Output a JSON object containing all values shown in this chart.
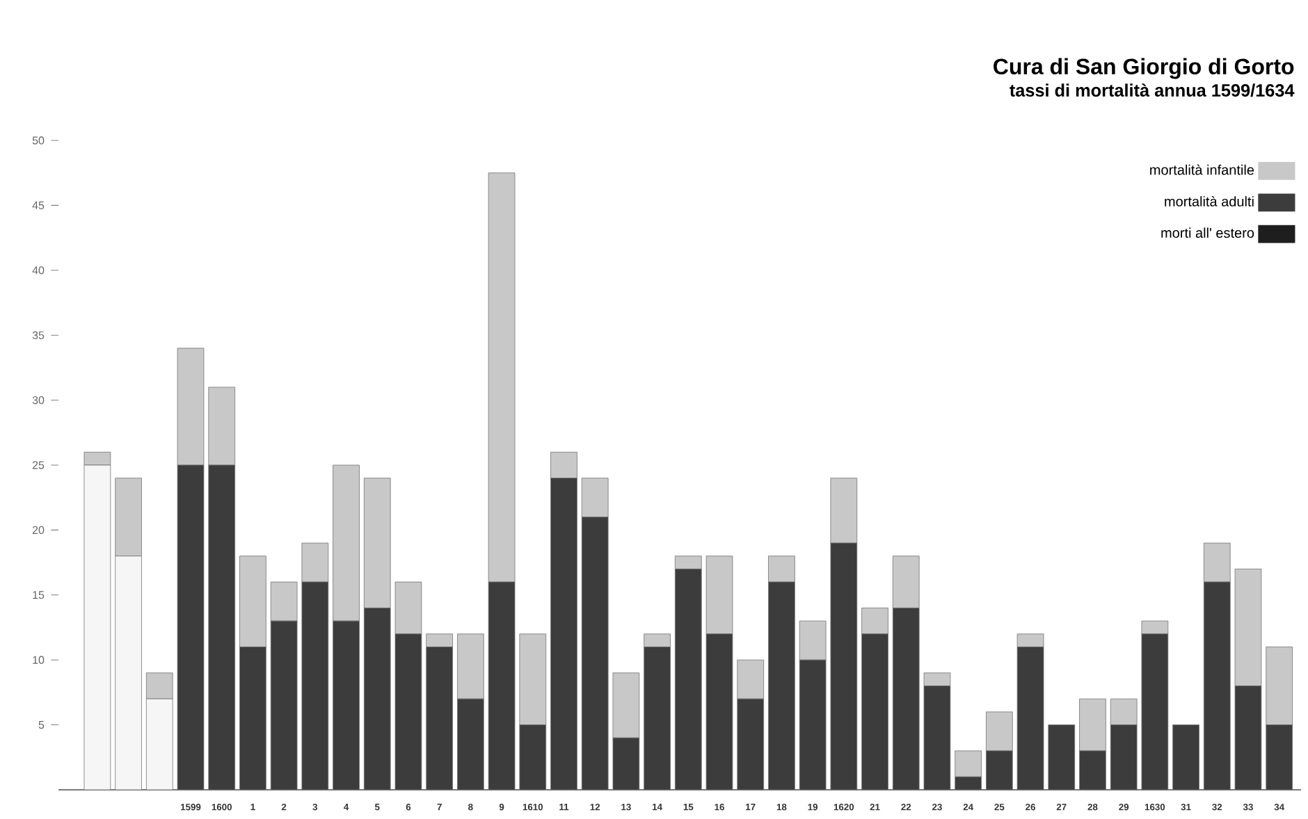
{
  "chart_data": {
    "type": "bar",
    "stacked": true,
    "title": "Cura di San Giorgio di Gorto",
    "subtitle": "tassi di mortalità annua 1599/1634",
    "categories": [
      null,
      null,
      null,
      "1599",
      "1600",
      "1",
      "2",
      "3",
      "4",
      "5",
      "6",
      "7",
      "8",
      "9",
      "1610",
      "11",
      "12",
      "13",
      "14",
      "15",
      "16",
      "17",
      "18",
      "19",
      "1620",
      "21",
      "22",
      "23",
      "24",
      "25",
      "26",
      "27",
      "28",
      "29",
      "1630",
      "31",
      "32",
      "33",
      "34"
    ],
    "series": [
      {
        "name": "morti all' estero",
        "color": "#1e1e1e",
        "values": [
          null,
          null,
          null,
          null,
          null,
          null,
          null,
          null,
          null,
          null,
          null,
          null,
          null,
          null,
          null,
          null,
          null,
          null,
          null,
          null,
          null,
          null,
          null,
          null,
          null,
          null,
          null,
          null,
          null,
          null,
          null,
          null,
          null,
          null,
          null,
          null,
          null,
          null,
          null
        ]
      },
      {
        "name": "mortalità adulti",
        "color": "#3c3c3c",
        "colors": [
          "#f6f6f6",
          "#f6f6f6",
          "#f6f6f6",
          "#3c3c3c",
          "#3c3c3c",
          "#3c3c3c",
          "#3c3c3c",
          "#3c3c3c",
          "#3c3c3c",
          "#3c3c3c",
          "#3c3c3c",
          "#3c3c3c",
          "#3c3c3c",
          "#3c3c3c",
          "#3c3c3c",
          "#3c3c3c",
          "#3c3c3c",
          "#3c3c3c",
          "#3c3c3c",
          "#3c3c3c",
          "#3c3c3c",
          "#3c3c3c",
          "#3c3c3c",
          "#3c3c3c",
          "#3c3c3c",
          "#3c3c3c",
          "#3c3c3c",
          "#3c3c3c",
          "#3c3c3c",
          "#3c3c3c",
          "#3c3c3c",
          "#3c3c3c",
          "#3c3c3c",
          "#3c3c3c",
          "#3c3c3c",
          "#3c3c3c",
          "#3c3c3c",
          "#3c3c3c",
          "#3c3c3c"
        ],
        "values": [
          25,
          18,
          7,
          25,
          25,
          11,
          13,
          16,
          13,
          14,
          12,
          11,
          7,
          16,
          5,
          24,
          21,
          4,
          11,
          17,
          12,
          7,
          16,
          10,
          19,
          12,
          14,
          8,
          1,
          3,
          11,
          5,
          3,
          5,
          12,
          5,
          16,
          8,
          5
        ]
      },
      {
        "name": "mortalità infantile",
        "color": "#c8c8c8",
        "values": [
          1,
          6,
          2,
          9,
          6,
          7,
          3,
          3,
          12,
          10,
          4,
          1,
          5,
          31.5,
          7,
          2,
          3,
          5,
          1,
          1,
          6,
          3,
          2,
          3,
          5,
          2,
          4,
          1,
          2,
          3,
          1,
          0,
          4,
          2,
          1,
          0,
          3,
          9,
          6
        ]
      }
    ],
    "ylim": [
      0,
      50
    ],
    "yticks": [
      5,
      10,
      15,
      20,
      25,
      30,
      35,
      40,
      45,
      50
    ],
    "grid": false,
    "legend": "top right"
  }
}
